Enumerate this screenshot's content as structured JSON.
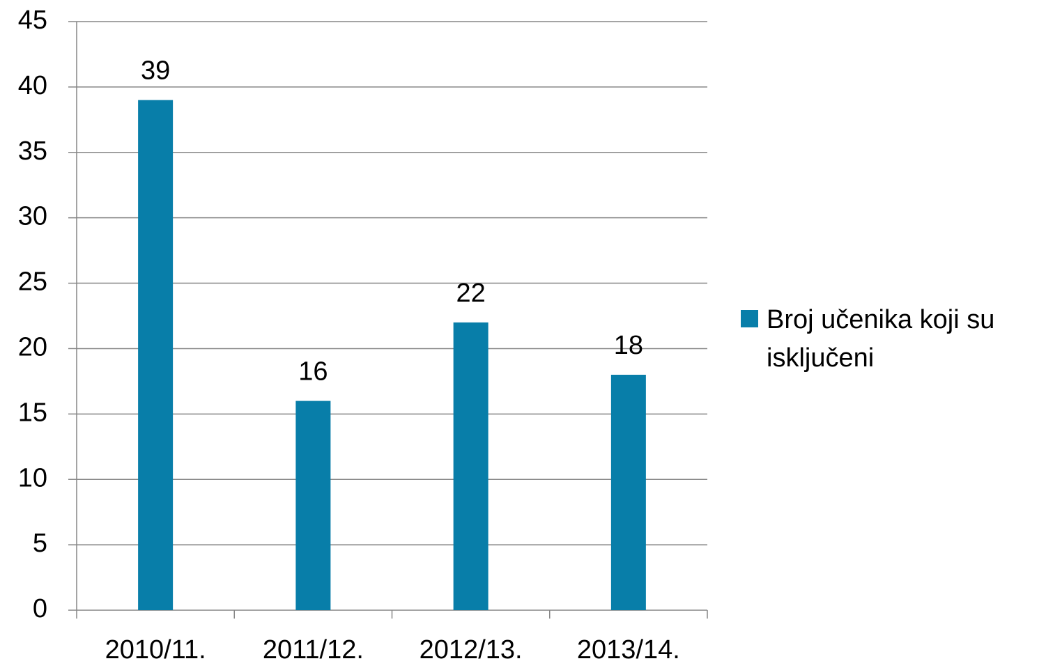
{
  "chart_data": {
    "type": "bar",
    "categories": [
      "2010/11.",
      "2011/12.",
      "2012/13.",
      "2013/14."
    ],
    "series": [
      {
        "name": "Broj učenika koji su isključeni",
        "color": "#087ea9",
        "values": [
          39,
          16,
          22,
          18
        ]
      }
    ],
    "ylim": [
      0,
      45
    ],
    "yticks": [
      0,
      5,
      10,
      15,
      20,
      25,
      30,
      35,
      40,
      45
    ],
    "grid": true,
    "legend": "right"
  }
}
